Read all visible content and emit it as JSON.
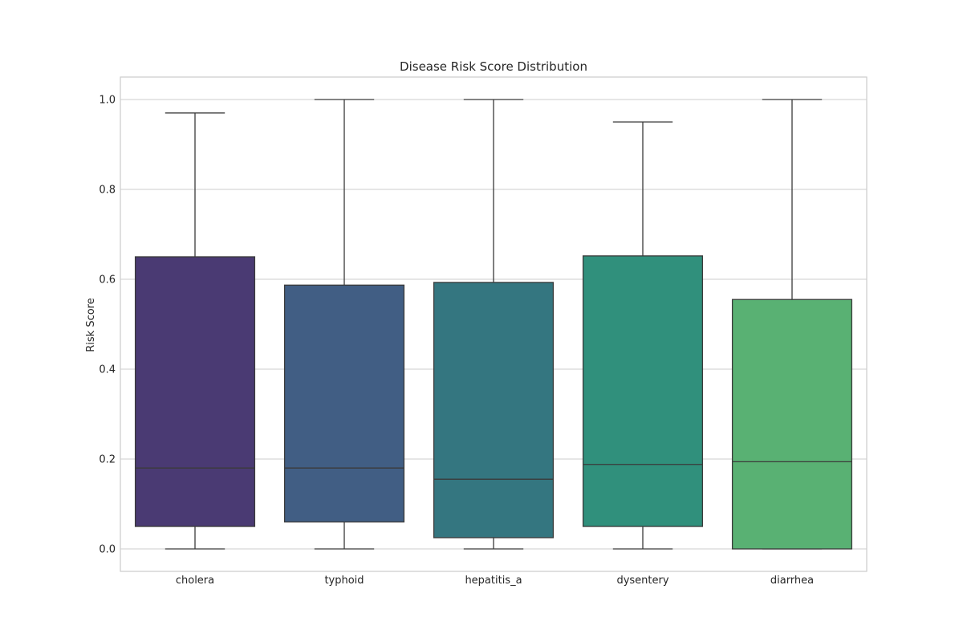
{
  "chart_data": {
    "type": "box",
    "title": "Disease Risk Score Distribution",
    "xlabel": "",
    "ylabel": "Risk Score",
    "ylim": [
      -0.05,
      1.05
    ],
    "yticks": [
      0.0,
      0.2,
      0.4,
      0.6,
      0.8,
      1.0
    ],
    "ytick_labels": [
      "0.0",
      "0.2",
      "0.4",
      "0.6",
      "0.8",
      "1.0"
    ],
    "grid": true,
    "categories": [
      "cholera",
      "typhoid",
      "hepatitis_a",
      "dysentery",
      "diarrhea"
    ],
    "boxes": [
      {
        "category": "cholera",
        "whisker_low": 0.0,
        "q1": 0.05,
        "median": 0.18,
        "q3": 0.65,
        "whisker_high": 0.97,
        "color": "#4a3a73"
      },
      {
        "category": "typhoid",
        "whisker_low": 0.0,
        "q1": 0.06,
        "median": 0.18,
        "q3": 0.587,
        "whisker_high": 1.0,
        "color": "#415e84"
      },
      {
        "category": "hepatitis_a",
        "whisker_low": 0.0,
        "q1": 0.025,
        "median": 0.155,
        "q3": 0.593,
        "whisker_high": 1.0,
        "color": "#347680"
      },
      {
        "category": "dysentery",
        "whisker_low": 0.0,
        "q1": 0.05,
        "median": 0.188,
        "q3": 0.652,
        "whisker_high": 0.95,
        "color": "#30907c"
      },
      {
        "category": "diarrhea",
        "whisker_low": 0.0,
        "q1": 0.0,
        "median": 0.194,
        "q3": 0.555,
        "whisker_high": 1.0,
        "color": "#59b173"
      }
    ]
  }
}
